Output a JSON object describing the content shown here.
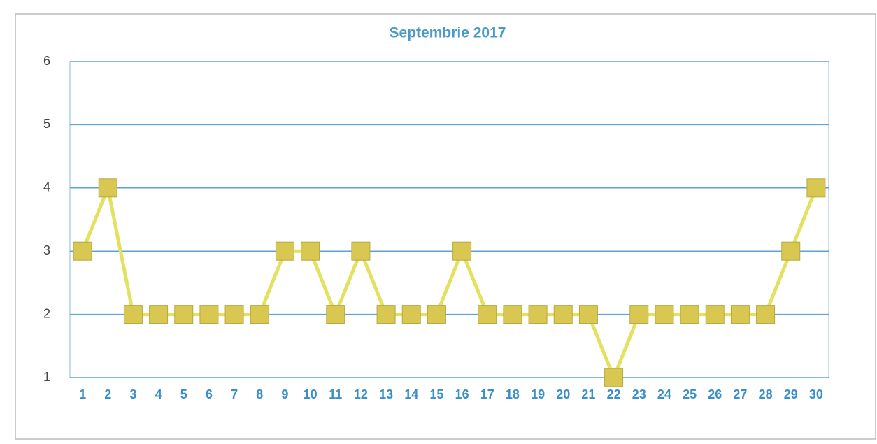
{
  "chart_data": {
    "type": "line",
    "title": "Septembrie 2017",
    "categories": [
      "1",
      "2",
      "3",
      "4",
      "5",
      "6",
      "7",
      "8",
      "9",
      "10",
      "11",
      "12",
      "13",
      "14",
      "15",
      "16",
      "17",
      "18",
      "19",
      "20",
      "21",
      "22",
      "23",
      "24",
      "25",
      "26",
      "27",
      "28",
      "29",
      "30"
    ],
    "values": [
      3,
      4,
      2,
      2,
      2,
      2,
      2,
      2,
      3,
      3,
      2,
      3,
      2,
      2,
      2,
      3,
      2,
      2,
      2,
      2,
      2,
      1,
      2,
      2,
      2,
      2,
      2,
      2,
      3,
      4
    ],
    "color": "#d8c852",
    "line_color": "#e4e060",
    "ylim": [
      1,
      6
    ],
    "yticks": [
      1,
      2,
      3,
      4,
      5,
      6
    ],
    "grid": true
  }
}
